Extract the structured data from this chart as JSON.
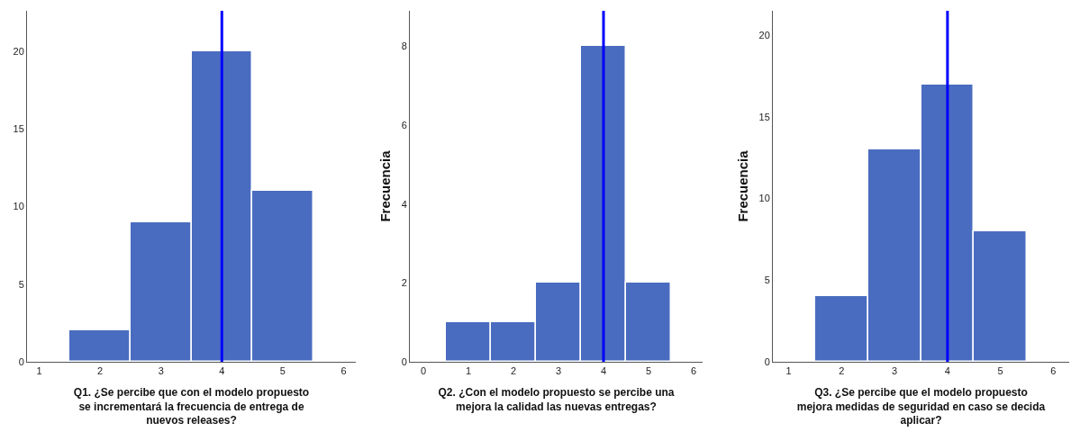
{
  "chart_data": [
    {
      "type": "histogram",
      "xlabel": "Q1. ¿Se percibe que con el modelo propuesto se incrementará la frecuencia de entrega de nuevos releases?",
      "bins": [
        1.5,
        2.5,
        3.5,
        4.5,
        5.5
      ],
      "values": [
        2,
        9,
        20,
        11
      ],
      "color": "#4a6cc0",
      "xlim": [
        0.8,
        6.2
      ],
      "xticks": [
        1,
        2,
        3,
        4,
        5,
        6
      ],
      "ylim": [
        0,
        22.6
      ],
      "yticks": [
        0,
        5,
        10,
        15,
        20
      ],
      "ref_lines": [
        {
          "axis": "x",
          "value": 4,
          "color": "#0000ff"
        }
      ]
    },
    {
      "type": "histogram",
      "ylabel": "Frecuencia",
      "xlabel": "Q2. ¿Con el modelo propuesto se percibe una mejora la calidad las nuevas entregas?",
      "bins": [
        0.5,
        1.5,
        2.5,
        3.5,
        4.5,
        5.5
      ],
      "values": [
        1,
        1,
        2,
        8,
        2
      ],
      "color": "#4a6cc0",
      "xlim": [
        -0.3,
        6.2
      ],
      "xticks": [
        0,
        1,
        2,
        3,
        4,
        5,
        6
      ],
      "ylim": [
        0,
        8.9
      ],
      "yticks": [
        0,
        2,
        4,
        6,
        8
      ],
      "ref_lines": [
        {
          "axis": "x",
          "value": 4,
          "color": "#0000ff"
        }
      ]
    },
    {
      "type": "histogram",
      "ylabel": "Frecuencia",
      "xlabel": "Q3. ¿Se percibe que el modelo propuesto mejora medidas de seguridad en caso se decida aplicar?",
      "bins": [
        1.5,
        2.5,
        3.5,
        4.5,
        5.5
      ],
      "values": [
        4,
        13,
        17,
        8
      ],
      "color": "#4a6cc0",
      "xlim": [
        0.7,
        6.3
      ],
      "xticks": [
        1,
        2,
        3,
        4,
        5,
        6
      ],
      "ylim": [
        0,
        21.5
      ],
      "yticks": [
        0,
        5,
        10,
        15,
        20
      ],
      "ref_lines": [
        {
          "axis": "x",
          "value": 4,
          "color": "#0000ff"
        }
      ]
    }
  ]
}
